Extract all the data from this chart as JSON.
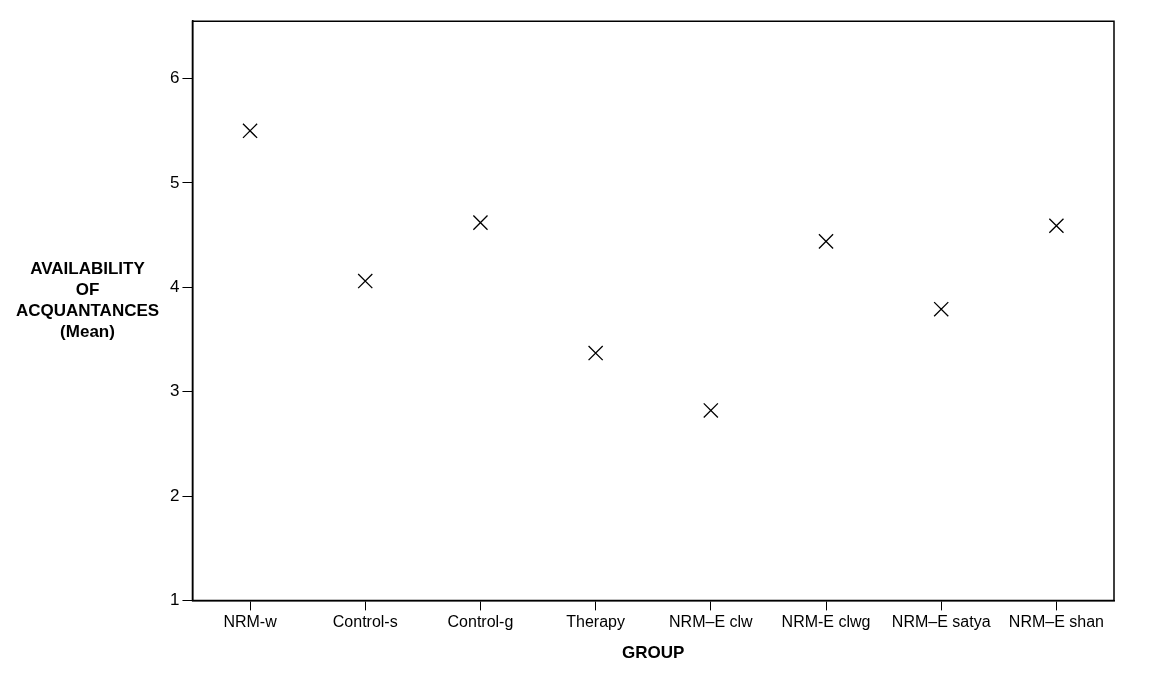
{
  "chart_data": {
    "type": "scatter",
    "xlabel": "GROUP",
    "ylabel": "AVAILABILITY\nOF\nACQUANTANCES\n(Mean)",
    "categories": [
      "NRM-w",
      "Control-s",
      "Control-g",
      "Therapy",
      "NRM–E clw",
      "NRM-E clwg",
      "NRM–E satya",
      "NRM–E shan"
    ],
    "values": [
      5.5,
      4.06,
      4.62,
      3.37,
      2.82,
      4.44,
      3.79,
      4.59
    ],
    "color": "#000000",
    "marker": "cross",
    "ylim": [
      1,
      6.55
    ],
    "yticks": [
      1,
      2,
      3,
      4,
      5,
      6
    ],
    "grid": false,
    "legend": false
  }
}
